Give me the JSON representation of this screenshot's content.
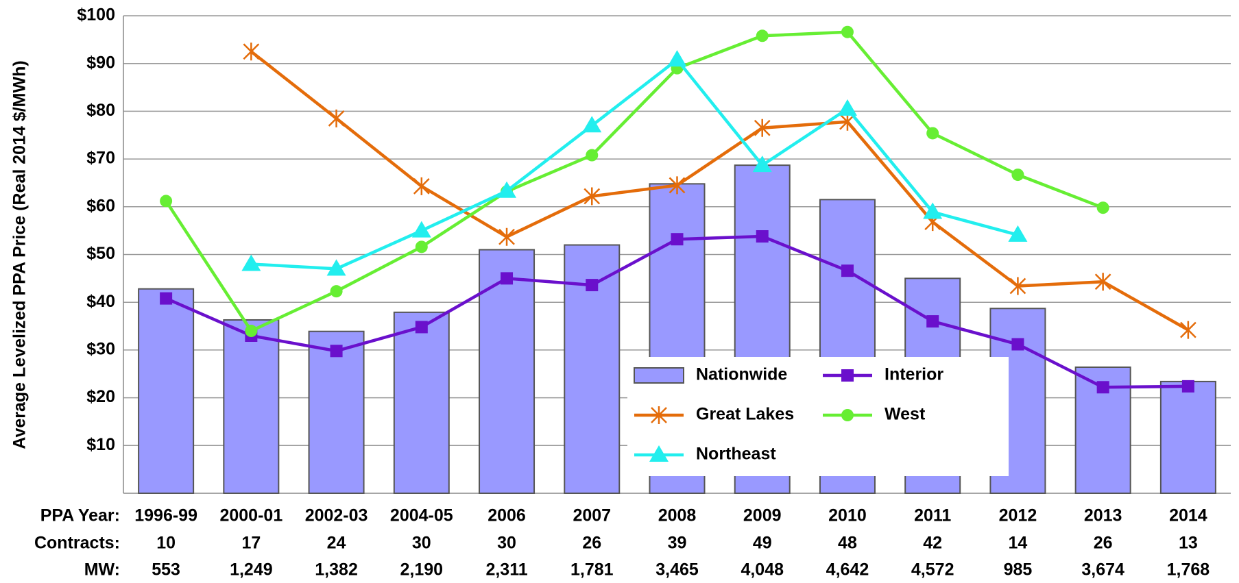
{
  "chart_data": {
    "type": "bar",
    "y_label": "Average Levelized PPA Price (Real 2014 $/MWh)",
    "categories": [
      "1996-99",
      "2000-01",
      "2002-03",
      "2004-05",
      "2006",
      "2007",
      "2008",
      "2009",
      "2010",
      "2011",
      "2012",
      "2013",
      "2014"
    ],
    "series": [
      {
        "name": "Nationwide",
        "type": "bar",
        "color": "#9999ff",
        "values": [
          42.8,
          36.3,
          33.9,
          37.9,
          51,
          52,
          64.8,
          68.7,
          61.5,
          45,
          38.7,
          26.4,
          23.4
        ]
      },
      {
        "name": "Interior",
        "type": "line",
        "marker": "square",
        "color": "#6a10cc",
        "values": [
          40.8,
          33,
          29.8,
          34.8,
          45,
          43.6,
          53.2,
          53.8,
          46.6,
          36,
          31.2,
          22.2,
          22.4
        ]
      },
      {
        "name": "Great Lakes",
        "type": "line",
        "marker": "star",
        "color": "#e46c0a",
        "values": [
          null,
          92.5,
          78.5,
          64.3,
          53.7,
          62.2,
          64.5,
          76.5,
          77.8,
          56.8,
          43.4,
          44.3,
          34.2
        ]
      },
      {
        "name": "West",
        "type": "line",
        "marker": "circle",
        "color": "#66ee33",
        "values": [
          61.2,
          34,
          42.3,
          51.6,
          63.2,
          70.8,
          89,
          95.8,
          96.6,
          75.4,
          66.7,
          59.8,
          null
        ]
      },
      {
        "name": "Northeast",
        "type": "line",
        "marker": "triangle",
        "color": "#22eeee",
        "values": [
          null,
          48,
          47,
          55,
          63.3,
          77,
          90.8,
          68.7,
          80.5,
          58.9,
          54.1,
          null,
          null
        ]
      }
    ],
    "ylim": [
      0,
      100
    ],
    "yticks": [
      {
        "value": 10,
        "label": "$10"
      },
      {
        "value": 20,
        "label": "$20"
      },
      {
        "value": 30,
        "label": "$30"
      },
      {
        "value": 40,
        "label": "$40"
      },
      {
        "value": 50,
        "label": "$50"
      },
      {
        "value": 60,
        "label": "$60"
      },
      {
        "value": 70,
        "label": "$70"
      },
      {
        "value": 80,
        "label": "$80"
      },
      {
        "value": 90,
        "label": "$90"
      },
      {
        "value": 100,
        "label": "$100"
      }
    ],
    "grid": true,
    "row_labels": [
      "PPA Year:",
      "Contracts:",
      "MW:"
    ],
    "contracts": [
      10,
      17,
      24,
      30,
      30,
      26,
      39,
      49,
      48,
      42,
      14,
      26,
      13
    ],
    "mw": [
      "553",
      "1,249",
      "1,382",
      "2,190",
      "2,311",
      "1,781",
      "3,465",
      "4,048",
      "4,642",
      "4,572",
      "985",
      "3,674",
      "1,768"
    ]
  }
}
